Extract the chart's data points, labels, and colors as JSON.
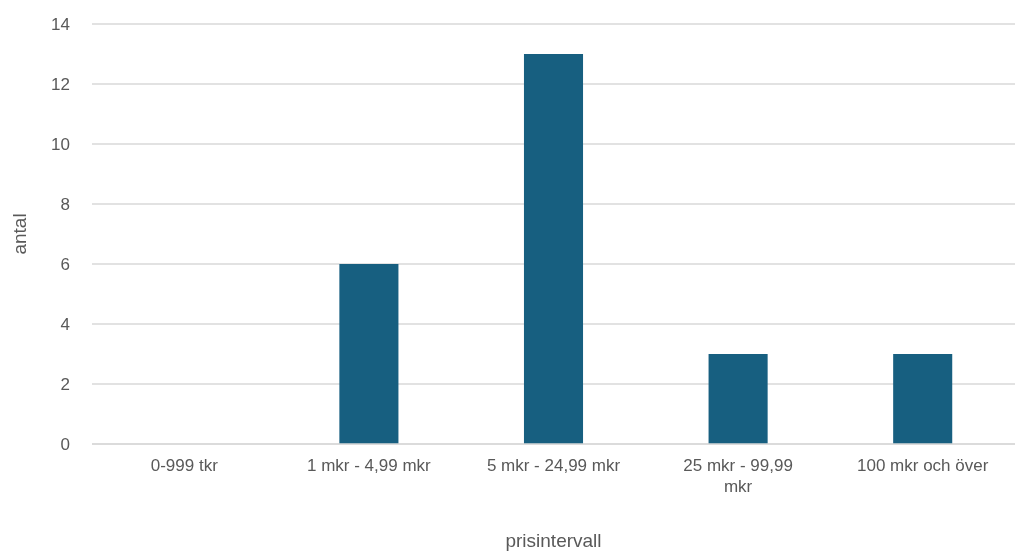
{
  "chart_data": {
    "type": "bar",
    "xlabel": "prisintervall",
    "ylabel": "antal",
    "categories": [
      "0-999 tkr",
      "1 mkr - 4,99 mkr",
      "5 mkr - 24,99 mkr",
      "25 mkr - 99,99 mkr",
      "100 mkr och över"
    ],
    "values": [
      0,
      6,
      13,
      3,
      3
    ],
    "color": "#175f80",
    "ylim": [
      0,
      14
    ],
    "yticks": [
      0,
      2,
      4,
      6,
      8,
      10,
      12,
      14
    ],
    "grid": "y"
  }
}
